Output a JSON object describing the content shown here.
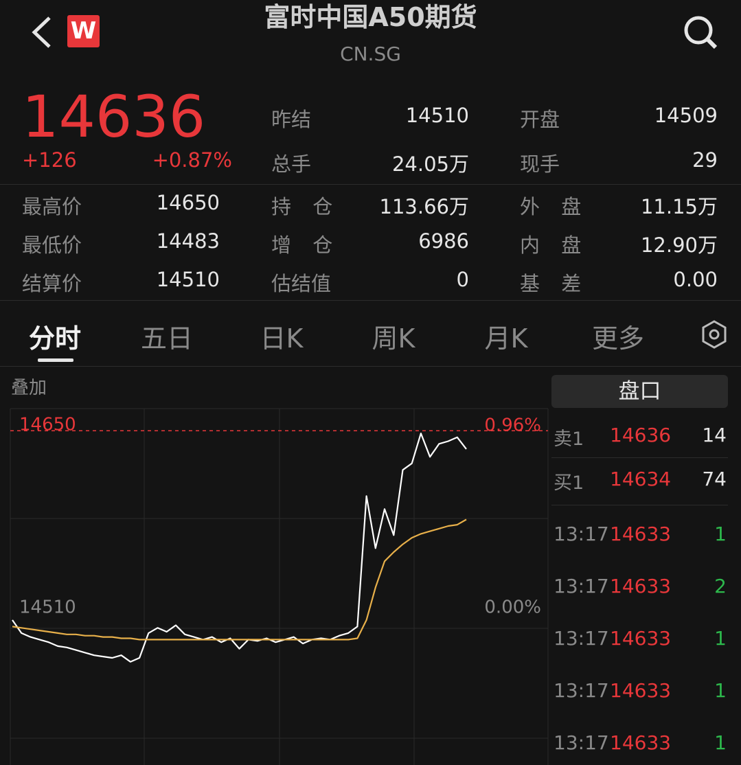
{
  "header": {
    "title": "富时中国A50期货",
    "symbol": "CN.SG",
    "badge": "W"
  },
  "quote": {
    "price": "14636",
    "change": "+126",
    "change_pct": "+0.87%"
  },
  "stats": [
    [
      {
        "label": "昨结",
        "value": "14510"
      },
      {
        "label": "开盘",
        "value": "14509"
      }
    ],
    [
      {
        "label": "总手",
        "value": "24.05万"
      },
      {
        "label": "现手",
        "value": "29"
      }
    ],
    [
      {
        "label": "最高价",
        "value": "14650"
      },
      {
        "label": "持 仓",
        "value": "113.66万"
      },
      {
        "label": "外 盘",
        "value": "11.15万"
      }
    ],
    [
      {
        "label": "最低价",
        "value": "14483"
      },
      {
        "label": "增 仓",
        "value": "6986"
      },
      {
        "label": "内 盘",
        "value": "12.90万"
      }
    ],
    [
      {
        "label": "结算价",
        "value": "14510"
      },
      {
        "label": "估结值",
        "value": "0"
      },
      {
        "label": "基 差",
        "value": "0.00"
      }
    ]
  ],
  "tabs": [
    "分时",
    "五日",
    "日K",
    "周K",
    "月K",
    "更多"
  ],
  "chart_data": {
    "type": "line",
    "overlay_label": "叠加",
    "categories": [
      null,
      null,
      null,
      null,
      null,
      null,
      null,
      null,
      null,
      null,
      null,
      null,
      null,
      null,
      null,
      null,
      null,
      null,
      null,
      null,
      null,
      null,
      null,
      null,
      null,
      null,
      null,
      null,
      null,
      null,
      null,
      null,
      null,
      null,
      null,
      null,
      null,
      null,
      null,
      null,
      null,
      null,
      null,
      null,
      null,
      null,
      null,
      null,
      null,
      null,
      null,
      null,
      null,
      null,
      null,
      null,
      null,
      null,
      null,
      null
    ],
    "series": [
      {
        "color": "#ffffff",
        "values": [
          14505,
          14495,
          14492,
          14490,
          14488,
          14485,
          14484,
          14482,
          14480,
          14478,
          14477,
          14476,
          14478,
          14473,
          14476,
          14495,
          14499,
          14496,
          14501,
          14494,
          14492,
          14490,
          14492,
          14488,
          14491,
          14483,
          14490,
          14489,
          14491,
          14488,
          14490,
          14492,
          14487,
          14490,
          14491,
          14490,
          14493,
          14495,
          14500,
          14600,
          14560,
          14590,
          14570,
          14620,
          14625,
          14648,
          14630,
          14640,
          14642,
          14645,
          14636,
          null,
          null,
          null,
          null,
          null,
          null,
          null,
          null,
          null
        ]
      },
      {
        "color": "#e8b04a",
        "values": [
          14500,
          14499,
          14498,
          14497,
          14496,
          14495,
          14494,
          14494,
          14493,
          14493,
          14492,
          14492,
          14491,
          14491,
          14490,
          14490,
          14490,
          14490,
          14490,
          14490,
          14490,
          14490,
          14490,
          14490,
          14490,
          14490,
          14490,
          14490,
          14490,
          14490,
          14490,
          14490,
          14490,
          14490,
          14490,
          14490,
          14490,
          14490,
          14491,
          14505,
          14530,
          14550,
          14557,
          14563,
          14568,
          14571,
          14573,
          14575,
          14577,
          14578,
          14582,
          null,
          null,
          null,
          null,
          null,
          null,
          null,
          null,
          null
        ]
      }
    ],
    "ylim": [
      14396,
      14667
    ],
    "yticks": [
      14650,
      14510
    ],
    "y2lim": [
      -0.786,
      1.082
    ],
    "y2ticks": [
      {
        "value": 0.96,
        "label": "0.96%"
      },
      {
        "value": 0,
        "label": "0.00%"
      }
    ],
    "tick_colors": [
      "#e8373a",
      "#8a8a8a"
    ],
    "dashed_ticks": [
      true,
      false
    ]
  },
  "order_book": {
    "title": "盘口",
    "quotes": [
      {
        "label": "卖1",
        "price": "14636",
        "volume": "14"
      },
      {
        "label": "买1",
        "price": "14634",
        "volume": "74"
      }
    ],
    "trades": [
      {
        "time": "13:17",
        "price": "14633",
        "volume": "1"
      },
      {
        "time": "13:17",
        "price": "14633",
        "volume": "2"
      },
      {
        "time": "13:17",
        "price": "14633",
        "volume": "1"
      },
      {
        "time": "13:17",
        "price": "14633",
        "volume": "1"
      },
      {
        "time": "13:17",
        "price": "14633",
        "volume": "1"
      }
    ]
  }
}
